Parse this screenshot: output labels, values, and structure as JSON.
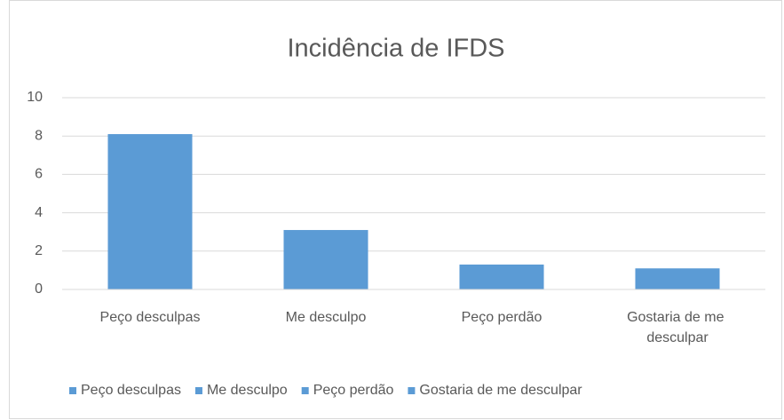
{
  "chart_data": {
    "type": "bar",
    "title": "Incidência de IFDS",
    "categories": [
      "Peço desculpas",
      "Me desculpo",
      "Peço perdão",
      "Gostaria de me desculpar"
    ],
    "values": [
      8.1,
      3.1,
      1.3,
      1.1
    ],
    "color": "#5b9bd5",
    "ylim": [
      0,
      10
    ],
    "yticks": [
      0,
      2,
      4,
      6,
      8,
      10
    ],
    "grid": true,
    "legend": "bottom"
  }
}
